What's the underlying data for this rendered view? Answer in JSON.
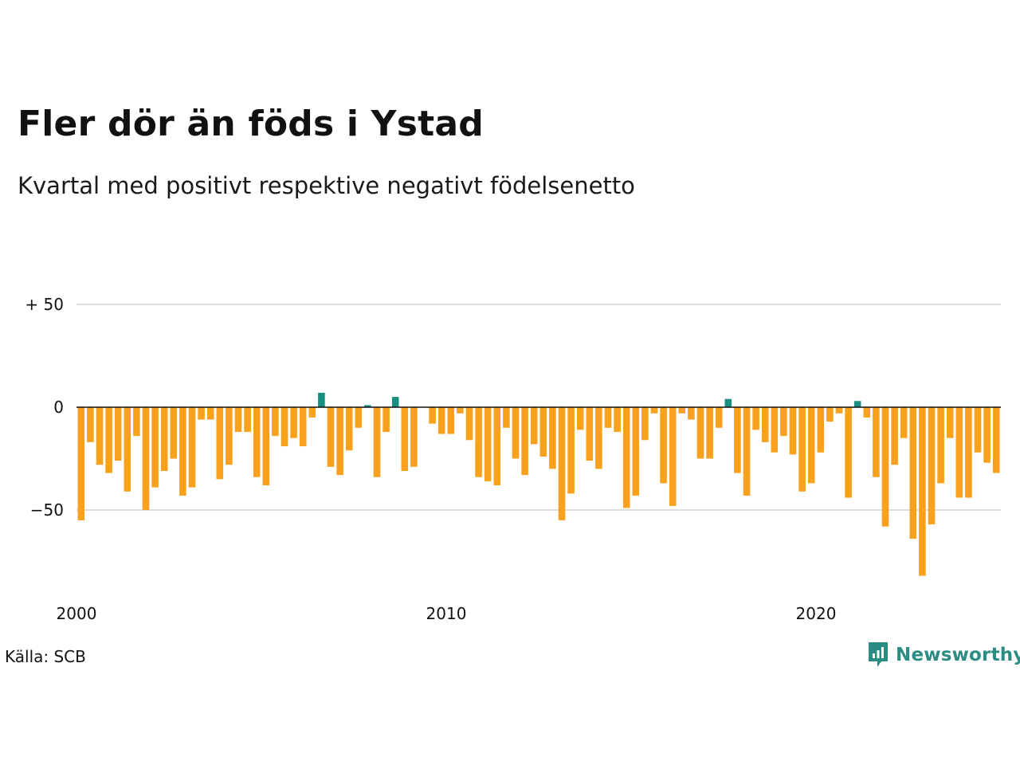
{
  "title": "Fler dör än föds i Ystad",
  "subtitle": "Kvartal med positivt respektive negativt födelsenetto",
  "source": "Källa: SCB",
  "brand": {
    "name": "Newsworthy",
    "color": "#2a8c82",
    "icon": "newsworthy-chart-bubble-icon"
  },
  "colors": {
    "positive": "#17907f",
    "negative": "#f7a11d",
    "grid": "#dddddd",
    "zero_line": "#111111"
  },
  "chart_data": {
    "type": "bar",
    "title": "Fler dör än föds i Ystad",
    "subtitle": "Kvartal med positivt respektive negativt födelsenetto",
    "xlabel": "",
    "ylabel": "",
    "ylim": [
      -85,
      50
    ],
    "xlim": [
      2000,
      2025.25
    ],
    "grid": true,
    "y_ticks": [
      {
        "value": 50,
        "label": "+ 50"
      },
      {
        "value": 0,
        "label": "0"
      },
      {
        "value": -50,
        "label": "−50"
      }
    ],
    "x_ticks": [
      {
        "value": 2000,
        "label": "2000"
      },
      {
        "value": 2010,
        "label": "2010"
      },
      {
        "value": 2020,
        "label": "2020"
      }
    ],
    "start": "2000 Q1",
    "frequency": "quarterly",
    "values": [
      -55,
      -17,
      -28,
      -32,
      -26,
      -41,
      -14,
      -50,
      -39,
      -31,
      -25,
      -43,
      -39,
      -6,
      -6,
      -35,
      -28,
      -12,
      -12,
      -34,
      -38,
      -14,
      -19,
      -15,
      -19,
      -5,
      7,
      -29,
      -33,
      -21,
      -10,
      1,
      -34,
      -12,
      5,
      -31,
      -29,
      0,
      -8,
      -13,
      -13,
      -3,
      -16,
      -34,
      -36,
      -38,
      -10,
      -25,
      -33,
      -18,
      -24,
      -30,
      -55,
      -42,
      -11,
      -26,
      -30,
      -10,
      -12,
      -49,
      -43,
      -16,
      -3,
      -37,
      -48,
      -3,
      -6,
      -25,
      -25,
      -10,
      4,
      -32,
      -43,
      -11,
      -17,
      -22,
      -14,
      -23,
      -41,
      -37,
      -22,
      -7,
      -3,
      -44,
      3,
      -5,
      -34,
      -58,
      -28,
      -15,
      -64,
      -82,
      -57,
      -37,
      -15,
      -44,
      -44,
      -22,
      -27,
      -32
    ]
  }
}
